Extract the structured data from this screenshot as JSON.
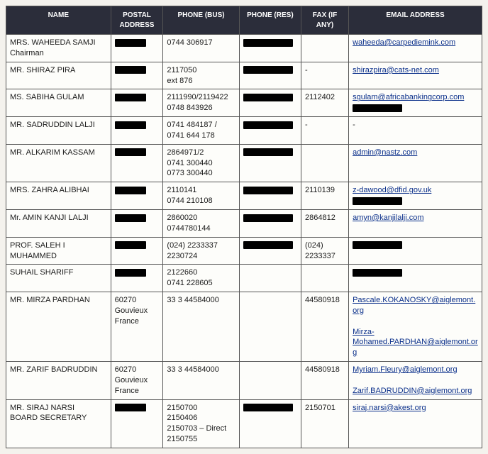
{
  "headers": {
    "name": "NAME",
    "postal": "POSTAL ADDRESS",
    "phone_bus": "PHONE (BUS)",
    "phone_res": "PHONE (RES)",
    "fax": "FAX (IF ANY)",
    "email": "EMAIL ADDRESS"
  },
  "rows": [
    {
      "name": "MRS. WAHEEDA SAMJI",
      "name2": "Chairman",
      "postal_redact": true,
      "phone_bus": "0744 306917",
      "phone_res_redact": true,
      "fax": "",
      "email1": "waheeda@carpediemink.com"
    },
    {
      "name": "MR. SHIRAZ PIRA",
      "postal_redact": true,
      "phone_bus": "2117050",
      "phone_bus2": "ext 876",
      "phone_res_redact": true,
      "fax": "-",
      "email1": "shirazpira@cats-net.com"
    },
    {
      "name": "MS. SABIHA GULAM",
      "postal_redact": true,
      "phone_bus": "2111990/2119422",
      "phone_bus2": "0748 843926",
      "phone_res_redact": true,
      "fax": "2112402",
      "email1": "sgulam@africabankingcorp.com",
      "email_redact": true
    },
    {
      "name": "MR. SADRUDDIN LALJI",
      "postal_redact": true,
      "phone_bus": "0741 484187 /",
      "phone_bus2": "0741 644 178",
      "phone_res_redact": true,
      "fax": "-",
      "email1": "-"
    },
    {
      "name": "MR. ALKARIM KASSAM",
      "postal_redact": true,
      "phone_bus": "2864971/2",
      "phone_bus2": "0741 300440",
      "phone_bus3": "0773 300440",
      "phone_res_redact": true,
      "fax": "",
      "email1": "admin@nastz.com"
    },
    {
      "name": "MRS. ZAHRA ALIBHAI",
      "postal_redact": true,
      "phone_bus": "2110141",
      "phone_bus2": "",
      "phone_bus3": "0744 210108",
      "phone_res_redact": true,
      "fax": "2110139",
      "email1": "z-dawood@dfid.gov.uk",
      "email_redact": true
    },
    {
      "name": "Mr. AMIN KANJI LALJI",
      "postal_redact": true,
      "phone_bus": "2860020",
      "phone_bus2": "0744780144",
      "phone_res_redact": true,
      "fax": "2864812",
      "email1": "amyn@kanjilalji.com"
    },
    {
      "name": "PROF. SALEH I MUHAMMED",
      "postal_redact": true,
      "phone_bus": "(024) 2233337",
      "phone_bus2": "2230724",
      "phone_res_redact": true,
      "fax": "(024)",
      "fax2": "2233337",
      "email_redact": true
    },
    {
      "name": "SUHAIL SHARIFF",
      "postal_redact": true,
      "phone_bus": "2122660",
      "phone_bus2": "0741  228605",
      "fax": "",
      "email_redact": true
    },
    {
      "name": "MR. MIRZA PARDHAN",
      "postal": "60270",
      "postal2": "Gouvieux",
      "postal3": "France",
      "phone_bus": "33 3 44584000",
      "fax": "44580918",
      "email1": "Pascale.KOKANOSKY@aiglemont.org",
      "email2": "Mirza-Mohamed.PARDHAN@aiglemont.org"
    },
    {
      "name": "MR. ZARIF BADRUDDIN",
      "postal": "60270",
      "postal2": "Gouvieux",
      "postal3": "France",
      "phone_bus": "33 3 44584000",
      "fax": "44580918",
      "email1": "Myriam.Fleury@aiglemont.org",
      "email2": "Zarif.BADRUDDIN@aiglemont.org"
    },
    {
      "name": "MR. SIRAJ NARSI",
      "name2": "BOARD SECRETARY",
      "postal_redact": true,
      "phone_bus": "2150700",
      "phone_bus2": "2150406",
      "phone_bus3": "2150703 – Direct",
      "phone_bus4": "2150755",
      "phone_res_redact": true,
      "fax": "2150701",
      "email1": "siraj.narsi@akest.org"
    }
  ]
}
